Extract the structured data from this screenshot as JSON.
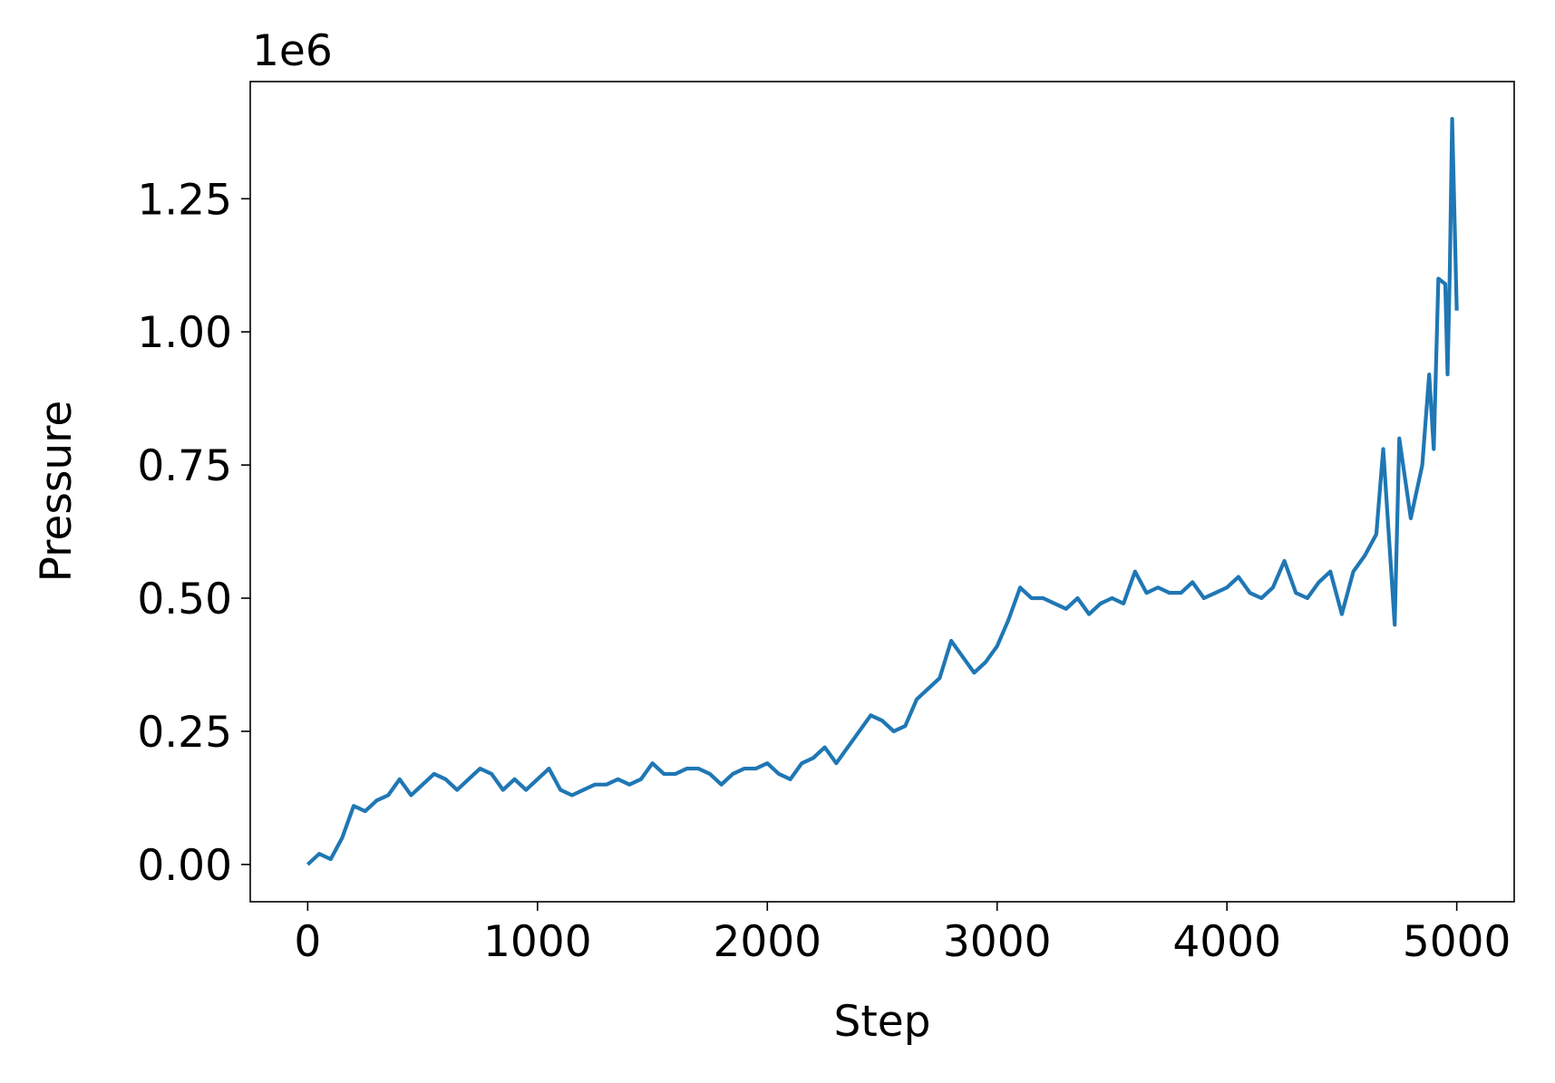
{
  "chart_data": {
    "type": "line",
    "x_label": "Step",
    "y_label": "Pressure",
    "offset_text": "1e6",
    "xlim": [
      -250,
      5250
    ],
    "ylim": [
      -0.07,
      1.47
    ],
    "xticks": [
      0,
      1000,
      2000,
      3000,
      4000,
      5000
    ],
    "yticks": [
      {
        "value": 0,
        "label": "0.00"
      },
      0.25,
      {
        "value": 0.5,
        "label": "0.50"
      },
      0.75,
      {
        "value": 1,
        "label": "1.00"
      },
      1.25
    ],
    "grid": false,
    "series": [
      {
        "color": "#1f77b4",
        "x": [
          0,
          50,
          100,
          150,
          200,
          250,
          300,
          350,
          400,
          450,
          500,
          550,
          600,
          650,
          700,
          750,
          800,
          850,
          900,
          950,
          1000,
          1050,
          1100,
          1150,
          1200,
          1250,
          1300,
          1350,
          1400,
          1450,
          1500,
          1550,
          1600,
          1650,
          1700,
          1750,
          1800,
          1850,
          1900,
          1950,
          2000,
          2050,
          2100,
          2150,
          2200,
          2250,
          2300,
          2350,
          2400,
          2450,
          2500,
          2550,
          2600,
          2650,
          2700,
          2750,
          2800,
          2850,
          2900,
          2950,
          3000,
          3050,
          3100,
          3150,
          3200,
          3250,
          3300,
          3350,
          3400,
          3450,
          3500,
          3550,
          3600,
          3650,
          3700,
          3750,
          3800,
          3850,
          3900,
          3950,
          4000,
          4050,
          4100,
          4150,
          4200,
          4250,
          4300,
          4350,
          4400,
          4450,
          4500,
          4550,
          4600,
          4650,
          4680,
          4730,
          4750,
          4800,
          4850,
          4880,
          4900,
          4920,
          4950,
          4960,
          4970,
          4980,
          5000
        ],
        "values": [
          0.0,
          0.02,
          0.01,
          0.05,
          0.11,
          0.1,
          0.12,
          0.13,
          0.16,
          0.13,
          0.15,
          0.17,
          0.16,
          0.14,
          0.16,
          0.18,
          0.17,
          0.14,
          0.16,
          0.14,
          0.16,
          0.18,
          0.14,
          0.13,
          0.14,
          0.15,
          0.15,
          0.16,
          0.15,
          0.16,
          0.19,
          0.17,
          0.17,
          0.18,
          0.18,
          0.17,
          0.15,
          0.17,
          0.18,
          0.18,
          0.19,
          0.17,
          0.16,
          0.19,
          0.2,
          0.22,
          0.19,
          0.22,
          0.25,
          0.28,
          0.27,
          0.25,
          0.26,
          0.31,
          0.33,
          0.35,
          0.42,
          0.39,
          0.36,
          0.38,
          0.41,
          0.46,
          0.52,
          0.5,
          0.5,
          0.49,
          0.48,
          0.5,
          0.47,
          0.49,
          0.5,
          0.49,
          0.55,
          0.51,
          0.52,
          0.51,
          0.51,
          0.53,
          0.5,
          0.51,
          0.52,
          0.54,
          0.51,
          0.5,
          0.52,
          0.57,
          0.51,
          0.5,
          0.53,
          0.55,
          0.47,
          0.55,
          0.58,
          0.62,
          0.78,
          0.45,
          0.8,
          0.65,
          0.75,
          0.92,
          0.78,
          1.1,
          1.09,
          0.92,
          1.12,
          1.4,
          1.04
        ]
      }
    ]
  }
}
